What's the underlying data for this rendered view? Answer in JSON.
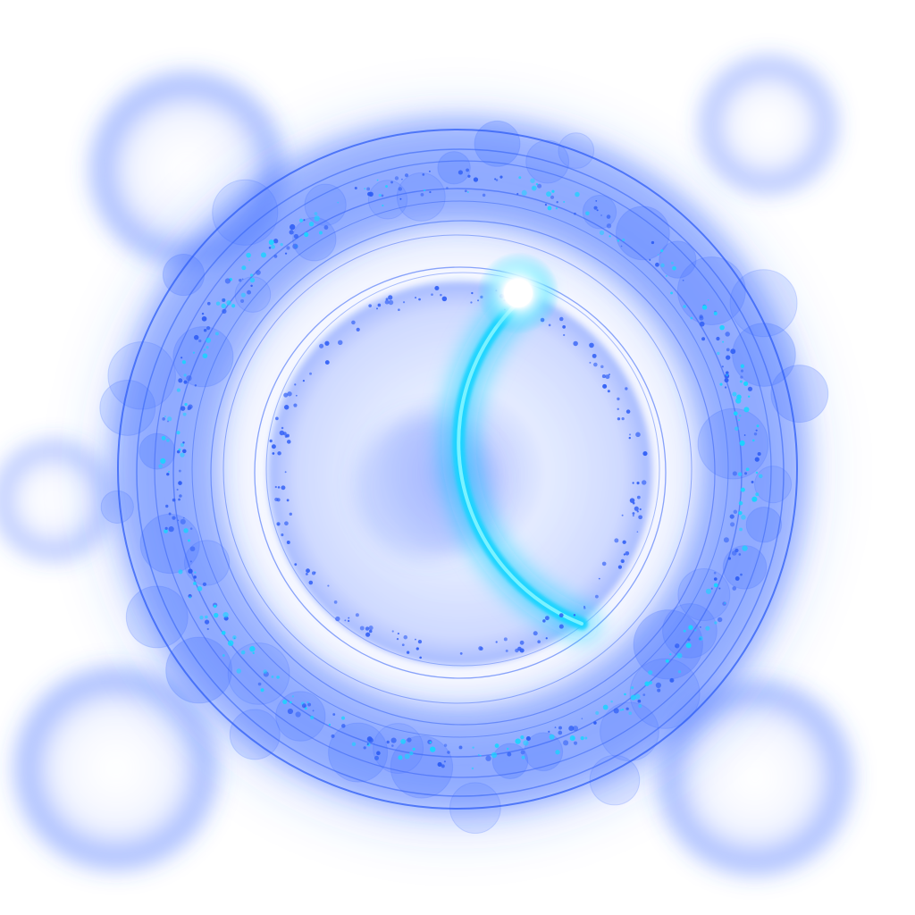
{
  "artwork": {
    "kind": "glowing-ring-light-effect",
    "colors": {
      "background": "#ffffff",
      "glow_blue": "#3a6bff",
      "ring_blue": "#2f5ef5",
      "cyan_arc": "#19d4ff",
      "cyan_bright": "#7ff3ff",
      "core_tint": "#c9d6ff",
      "highlight": "#ffffff"
    }
  }
}
